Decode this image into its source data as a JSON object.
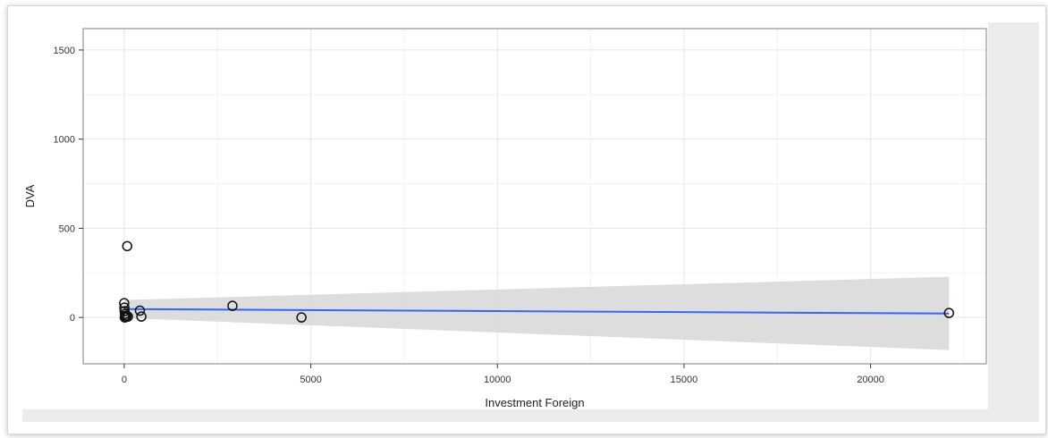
{
  "chart_data": {
    "type": "scatter",
    "title": "",
    "xlabel": "Investment Foreign",
    "ylabel": "DVA",
    "xlim": [
      -1100,
      23100
    ],
    "ylim": [
      -260,
      1620
    ],
    "x_ticks": [
      0,
      5000,
      10000,
      15000,
      20000
    ],
    "y_ticks": [
      0,
      500,
      1000,
      1500
    ],
    "x_tick_labels": [
      "0",
      "5000",
      "10000",
      "15000",
      "20000"
    ],
    "y_tick_labels": [
      "0",
      "500",
      "1000",
      "1500"
    ],
    "grid": true,
    "points": [
      {
        "x": 80,
        "y": 400
      },
      {
        "x": 0,
        "y": 80
      },
      {
        "x": 5,
        "y": 55
      },
      {
        "x": 10,
        "y": 35
      },
      {
        "x": 20,
        "y": 20
      },
      {
        "x": 30,
        "y": 10
      },
      {
        "x": 40,
        "y": 5
      },
      {
        "x": 50,
        "y": 2
      },
      {
        "x": 15,
        "y": 0
      },
      {
        "x": 60,
        "y": 8
      },
      {
        "x": 100,
        "y": 5
      },
      {
        "x": 420,
        "y": 38
      },
      {
        "x": 460,
        "y": 5
      },
      {
        "x": 2900,
        "y": 65
      },
      {
        "x": 4750,
        "y": 0
      },
      {
        "x": 22100,
        "y": 25
      }
    ],
    "fit_line": {
      "color": "#3366ff",
      "x": [
        0,
        22100
      ],
      "y": [
        47,
        22
      ]
    },
    "confidence_band": {
      "color": "#d9d9d9",
      "x": [
        0,
        22100
      ],
      "upper": [
        98,
        228
      ],
      "lower": [
        -3,
        -183
      ]
    }
  }
}
